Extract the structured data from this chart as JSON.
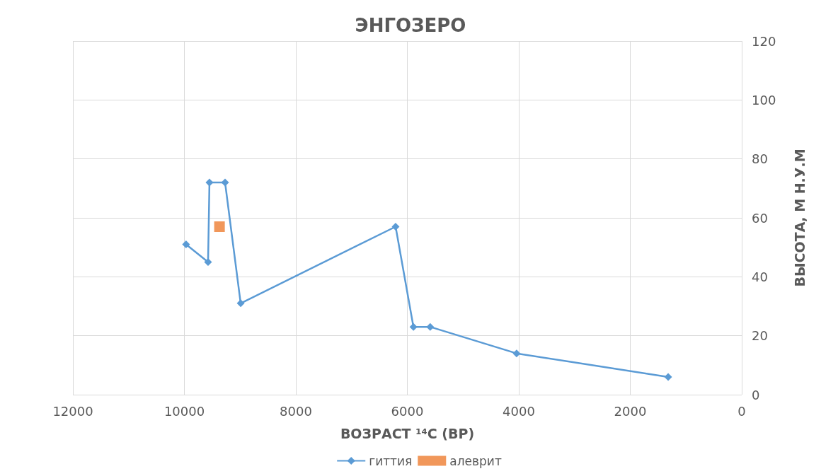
{
  "chart_data": {
    "type": "line",
    "title": "ЭНГОЗЕРО",
    "xlabel": "ВОЗРАСТ ¹⁴C (BP)",
    "ylabel": "ВЫСОТА, М Н.У.М",
    "xlim": [
      12000,
      0
    ],
    "xticks": [
      12000,
      10000,
      8000,
      6000,
      4000,
      2000,
      0
    ],
    "ylim": [
      0,
      120
    ],
    "yticks": [
      0,
      20,
      40,
      60,
      80,
      100,
      120
    ],
    "grid": true,
    "legend": "bottom",
    "line_style": "solid",
    "series": [
      {
        "name": "гиттия",
        "marker": "diamond",
        "color": "#5b9bd5",
        "x": [
          9970,
          9575,
          9550,
          9270,
          8990,
          6210,
          5890,
          5590,
          4040,
          1320
        ],
        "values": [
          51,
          45,
          72,
          72,
          31,
          57,
          23,
          23,
          14,
          6
        ]
      },
      {
        "name": "алеврит",
        "type": "scatter",
        "marker": "square",
        "color": "#ed7d31",
        "x": [
          9370
        ],
        "values": [
          57
        ]
      }
    ]
  }
}
